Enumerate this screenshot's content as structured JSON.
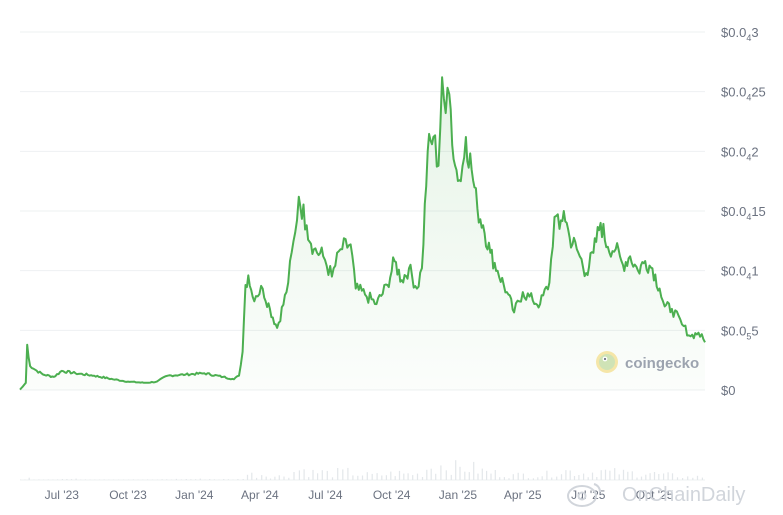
{
  "chart_data": {
    "type": "area",
    "title": "",
    "xlabel": "",
    "ylabel": "",
    "ylim": [
      0,
      3e-05
    ],
    "y_ticks": [
      {
        "prefix": "$0",
        "zeros": "",
        "digits": ""
      },
      {
        "prefix": "$0.0",
        "zeros": "5",
        "digits": "5"
      },
      {
        "prefix": "$0.0",
        "zeros": "4",
        "digits": "1"
      },
      {
        "prefix": "$0.0",
        "zeros": "4",
        "digits": "15"
      },
      {
        "prefix": "$0.0",
        "zeros": "4",
        "digits": "2"
      },
      {
        "prefix": "$0.0",
        "zeros": "4",
        "digits": "25"
      },
      {
        "prefix": "$0.0",
        "zeros": "4",
        "digits": "3"
      }
    ],
    "y_tick_values": [
      0,
      5e-06,
      1e-05,
      1.5e-05,
      2e-05,
      2.5e-05,
      3e-05
    ],
    "x_ticks": [
      "Jul '23",
      "Oct '23",
      "Jan '24",
      "Apr '24",
      "Jul '24",
      "Oct '24",
      "Jan '25",
      "Apr '25",
      "Jul '25",
      "Oct '25"
    ],
    "x_tick_dates": [
      "2023-07-01",
      "2023-10-01",
      "2024-01-01",
      "2024-04-01",
      "2024-07-01",
      "2024-10-01",
      "2025-01-01",
      "2025-04-01",
      "2025-07-01",
      "2025-10-01"
    ],
    "x_range": [
      "2023-05-04",
      "2025-12-10"
    ],
    "grid": true,
    "series": [
      {
        "color": "#4caf50",
        "fill": "#e8f5e9",
        "points": [
          [
            "2023-05-04",
            3e-08
          ],
          [
            "2023-05-08",
            3e-07
          ],
          [
            "2023-05-12",
            6e-07
          ],
          [
            "2023-05-14",
            3.8e-06
          ],
          [
            "2023-05-18",
            2e-06
          ],
          [
            "2023-05-25",
            1.7e-06
          ],
          [
            "2023-06-05",
            1.3e-06
          ],
          [
            "2023-06-20",
            1.1e-06
          ],
          [
            "2023-07-01",
            1.6e-06
          ],
          [
            "2023-07-20",
            1.4e-06
          ],
          [
            "2023-08-15",
            1.2e-06
          ],
          [
            "2023-09-10",
            9e-07
          ],
          [
            "2023-10-01",
            7e-07
          ],
          [
            "2023-10-25",
            6e-07
          ],
          [
            "2023-11-10",
            7e-07
          ],
          [
            "2023-11-25",
            1.2e-06
          ],
          [
            "2023-12-20",
            1.3e-06
          ],
          [
            "2024-01-15",
            1.4e-06
          ],
          [
            "2024-02-10",
            1.1e-06
          ],
          [
            "2024-02-25",
            9e-07
          ],
          [
            "2024-03-03",
            1.2e-06
          ],
          [
            "2024-03-08",
            3.2e-06
          ],
          [
            "2024-03-12",
            8.8e-06
          ],
          [
            "2024-03-16",
            9.6e-06
          ],
          [
            "2024-03-22",
            7.8e-06
          ],
          [
            "2024-04-05",
            8.5e-06
          ],
          [
            "2024-04-15",
            6.8e-06
          ],
          [
            "2024-04-25",
            5.2e-06
          ],
          [
            "2024-05-08",
            8.2e-06
          ],
          [
            "2024-05-20",
            1.32e-05
          ],
          [
            "2024-05-25",
            1.62e-05
          ],
          [
            "2024-06-05",
            1.38e-05
          ],
          [
            "2024-06-15",
            1.18e-05
          ],
          [
            "2024-06-28",
            1.12e-05
          ],
          [
            "2024-07-10",
            9.5e-06
          ],
          [
            "2024-07-22",
            1.18e-05
          ],
          [
            "2024-08-05",
            1.22e-05
          ],
          [
            "2024-08-12",
            8.5e-06
          ],
          [
            "2024-08-25",
            8e-06
          ],
          [
            "2024-09-10",
            7.2e-06
          ],
          [
            "2024-09-25",
            8.8e-06
          ],
          [
            "2024-10-05",
            1.08e-05
          ],
          [
            "2024-10-15",
            9.2e-06
          ],
          [
            "2024-10-25",
            1.02e-05
          ],
          [
            "2024-11-05",
            8.5e-06
          ],
          [
            "2024-11-12",
            1.02e-05
          ],
          [
            "2024-11-20",
            2e-05
          ],
          [
            "2024-11-28",
            2.12e-05
          ],
          [
            "2024-12-05",
            1.88e-05
          ],
          [
            "2024-12-10",
            2.62e-05
          ],
          [
            "2024-12-15",
            2.32e-05
          ],
          [
            "2024-12-20",
            2.48e-05
          ],
          [
            "2024-12-28",
            1.88e-05
          ],
          [
            "2025-01-05",
            1.75e-05
          ],
          [
            "2025-01-12",
            2.12e-05
          ],
          [
            "2025-01-20",
            1.85e-05
          ],
          [
            "2025-01-28",
            1.52e-05
          ],
          [
            "2025-02-05",
            1.38e-05
          ],
          [
            "2025-02-15",
            1.15e-05
          ],
          [
            "2025-02-25",
            1e-05
          ],
          [
            "2025-03-10",
            8.2e-06
          ],
          [
            "2025-03-20",
            6.5e-06
          ],
          [
            "2025-04-01",
            8.2e-06
          ],
          [
            "2025-04-15",
            7.5e-06
          ],
          [
            "2025-04-25",
            7.2e-06
          ],
          [
            "2025-05-08",
            9e-06
          ],
          [
            "2025-05-15",
            1.45e-05
          ],
          [
            "2025-05-22",
            1.35e-05
          ],
          [
            "2025-05-28",
            1.5e-05
          ],
          [
            "2025-06-05",
            1.28e-05
          ],
          [
            "2025-06-15",
            1.18e-05
          ],
          [
            "2025-06-28",
            9.8e-06
          ],
          [
            "2025-07-08",
            1.15e-05
          ],
          [
            "2025-07-18",
            1.4e-05
          ],
          [
            "2025-07-28",
            1.2e-05
          ],
          [
            "2025-08-08",
            1.18e-05
          ],
          [
            "2025-08-18",
            1.05e-05
          ],
          [
            "2025-08-28",
            1.12e-05
          ],
          [
            "2025-09-08",
            1e-05
          ],
          [
            "2025-09-18",
            1.08e-05
          ],
          [
            "2025-09-28",
            1.02e-05
          ],
          [
            "2025-10-08",
            8.5e-06
          ],
          [
            "2025-10-15",
            7e-06
          ],
          [
            "2025-10-25",
            6.8e-06
          ],
          [
            "2025-11-08",
            5.5e-06
          ],
          [
            "2025-11-20",
            4.5e-06
          ],
          [
            "2025-12-01",
            4.8e-06
          ],
          [
            "2025-12-10",
            4e-06
          ]
        ]
      }
    ]
  },
  "branding": {
    "logo_text": "coingecko",
    "logo_icon": "gecko-icon",
    "watermark_text": "OnChainDaily",
    "watermark_icon": "weibo-icon"
  }
}
